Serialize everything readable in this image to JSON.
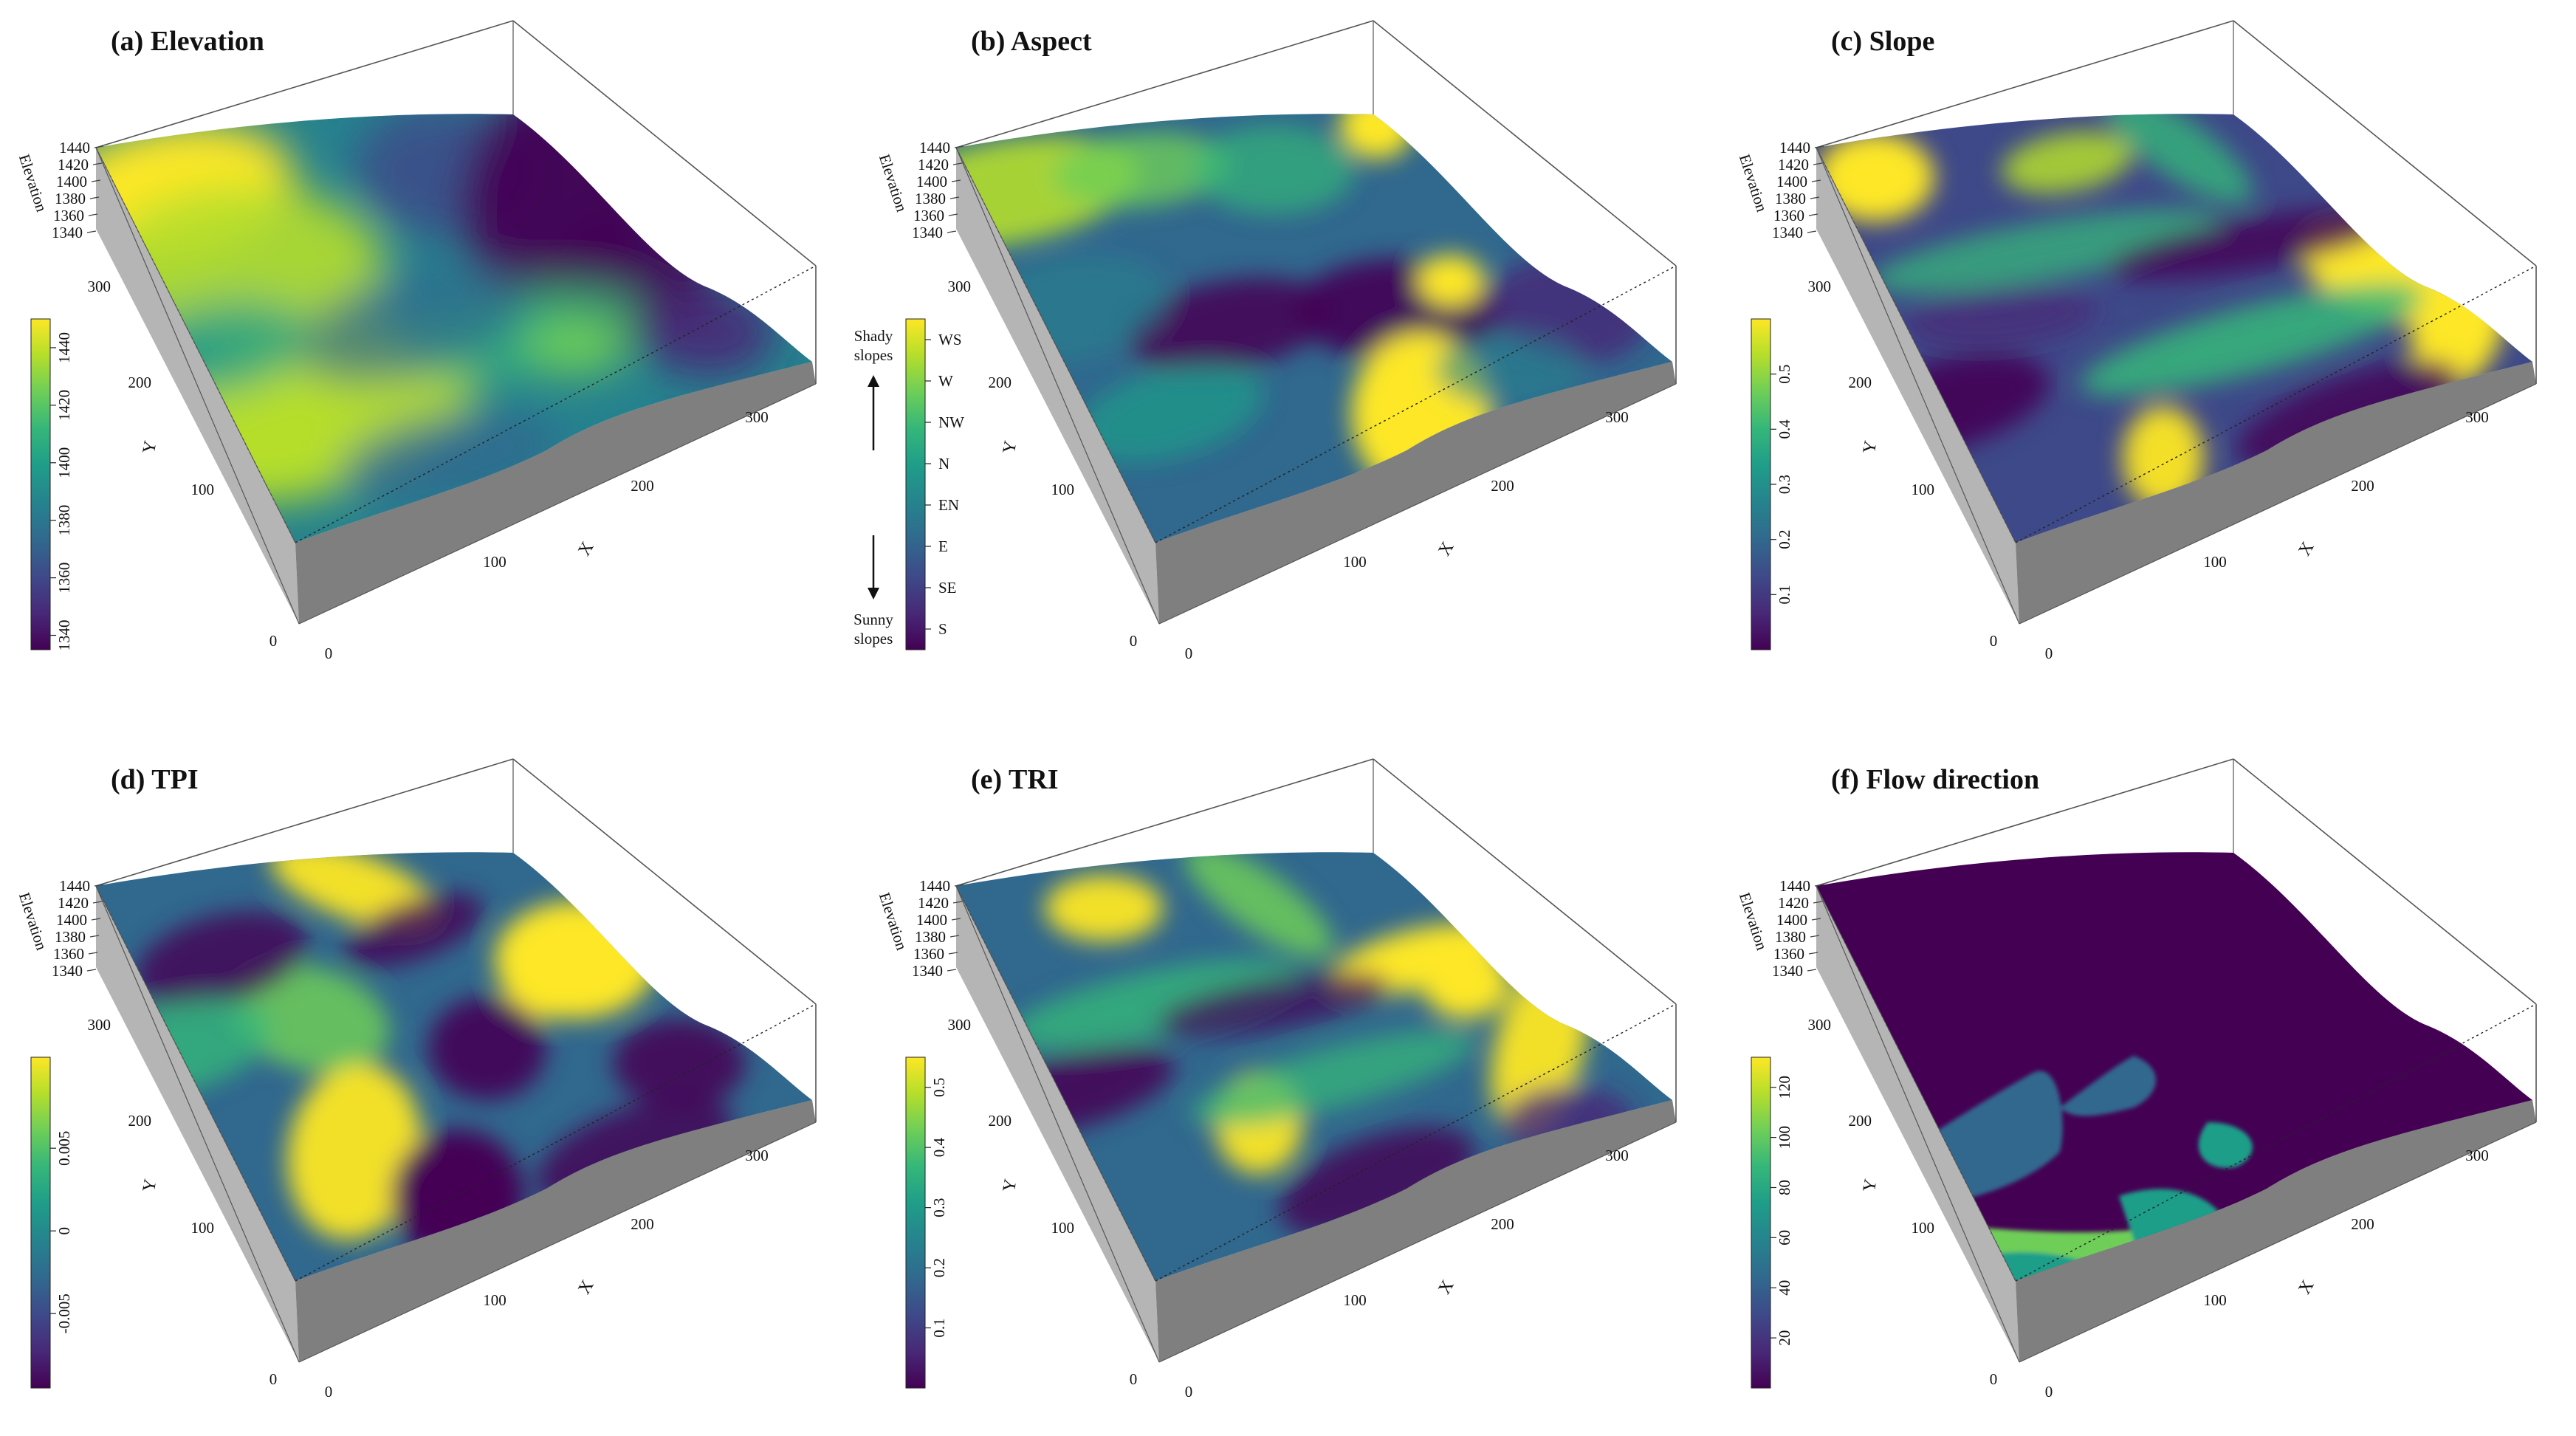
{
  "chart_data": [
    {
      "type": "3d-surface",
      "title": "(a) Elevation",
      "xlabel": "X",
      "ylabel": "Y",
      "zlabel": "Elevation",
      "x_ticks": [
        "0",
        "100",
        "200",
        "300"
      ],
      "y_ticks": [
        "0",
        "100",
        "200",
        "300"
      ],
      "z_ticks": [
        "1440",
        "1420",
        "1400",
        "1380",
        "1360",
        "1340"
      ],
      "colorbar": {
        "ticks": [
          "1340",
          "1360",
          "1380",
          "1400",
          "1420",
          "1440"
        ],
        "range": [
          1335,
          1450
        ]
      }
    },
    {
      "type": "3d-surface",
      "title": "(b) Aspect",
      "xlabel": "X",
      "ylabel": "Y",
      "zlabel": "Elevation",
      "x_ticks": [
        "0",
        "100",
        "200",
        "300"
      ],
      "y_ticks": [
        "0",
        "100",
        "200",
        "300"
      ],
      "z_ticks": [
        "1440",
        "1420",
        "1400",
        "1380",
        "1360",
        "1340"
      ],
      "colorbar": {
        "ticks": [
          "S",
          "SE",
          "E",
          "EN",
          "N",
          "NW",
          "W",
          "WS"
        ]
      },
      "annotations": {
        "top": [
          "Shady",
          "slopes"
        ],
        "bottom": [
          "Sunny",
          "slopes"
        ]
      }
    },
    {
      "type": "3d-surface",
      "title": "(c) Slope",
      "xlabel": "X",
      "ylabel": "Y",
      "zlabel": "Elevation",
      "x_ticks": [
        "0",
        "100",
        "200",
        "300"
      ],
      "y_ticks": [
        "0",
        "100",
        "200",
        "300"
      ],
      "z_ticks": [
        "1440",
        "1420",
        "1400",
        "1380",
        "1360",
        "1340"
      ],
      "colorbar": {
        "ticks": [
          "0.1",
          "0.2",
          "0.3",
          "0.4",
          "0.5"
        ],
        "range": [
          0.0,
          0.6
        ]
      }
    },
    {
      "type": "3d-surface",
      "title": "(d) TPI",
      "xlabel": "X",
      "ylabel": "Y",
      "zlabel": "Elevation",
      "x_ticks": [
        "0",
        "100",
        "200",
        "300"
      ],
      "y_ticks": [
        "0",
        "100",
        "200",
        "300"
      ],
      "z_ticks": [
        "1440",
        "1420",
        "1400",
        "1380",
        "1360",
        "1340"
      ],
      "colorbar": {
        "ticks": [
          "-0.005",
          "0",
          "0.005"
        ],
        "range": [
          -0.0095,
          0.0105
        ]
      }
    },
    {
      "type": "3d-surface",
      "title": "(e) TRI",
      "xlabel": "X",
      "ylabel": "Y",
      "zlabel": "Elevation",
      "x_ticks": [
        "0",
        "100",
        "200",
        "300"
      ],
      "y_ticks": [
        "0",
        "100",
        "200",
        "300"
      ],
      "z_ticks": [
        "1440",
        "1420",
        "1400",
        "1380",
        "1360",
        "1340"
      ],
      "colorbar": {
        "ticks": [
          "0.1",
          "0.2",
          "0.3",
          "0.4",
          "0.5"
        ],
        "range": [
          0.0,
          0.55
        ]
      }
    },
    {
      "type": "3d-surface",
      "title": "(f) Flow direction",
      "xlabel": "X",
      "ylabel": "Y",
      "zlabel": "Elevation",
      "x_ticks": [
        "0",
        "100",
        "200",
        "300"
      ],
      "y_ticks": [
        "0",
        "100",
        "200",
        "300"
      ],
      "z_ticks": [
        "1440",
        "1420",
        "1400",
        "1380",
        "1360",
        "1340"
      ],
      "colorbar": {
        "ticks": [
          "20",
          "40",
          "60",
          "80",
          "100",
          "120"
        ],
        "range": [
          0,
          132
        ]
      }
    }
  ],
  "colors": {
    "viridis": [
      "#440154",
      "#482878",
      "#3e4989",
      "#31688e",
      "#26828e",
      "#1f9e89",
      "#35b779",
      "#6ece58",
      "#b5de2b",
      "#fde725"
    ],
    "base": "#7f7f7f",
    "side": "#b5b5b5",
    "box": "#555555"
  }
}
